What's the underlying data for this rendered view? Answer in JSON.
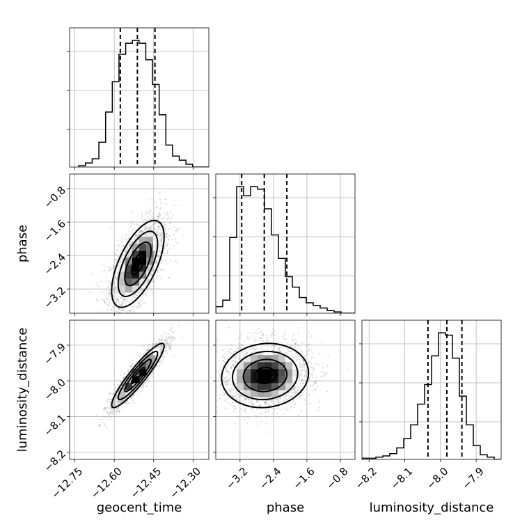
{
  "chart_data": {
    "type": "corner",
    "parameters": [
      "geocent_time",
      "phase",
      "luminosity_distance"
    ],
    "axis_labels": {
      "x": [
        "geocent_time",
        "phase",
        "luminosity_distance"
      ],
      "y": [
        "",
        "phase",
        "luminosity_distance"
      ]
    },
    "ranges": {
      "geocent_time": [
        -12.77,
        -12.24
      ],
      "phase": [
        -3.78,
        -0.45
      ],
      "luminosity_distance": [
        -8.22,
        -7.83
      ]
    },
    "ticks": {
      "geocent_time": [
        -12.75,
        -12.6,
        -12.45,
        -12.3
      ],
      "phase": [
        -3.2,
        -2.4,
        -1.6,
        -0.8
      ],
      "luminosity_distance": [
        -8.2,
        -8.1,
        -8.0,
        -7.9
      ]
    },
    "tick_labels": {
      "geocent_time": [
        "−12.75",
        "−12.60",
        "−12.45",
        "−12.30"
      ],
      "phase": [
        "−3.2",
        "−2.4",
        "−1.6",
        "−0.8"
      ],
      "luminosity_distance": [
        "−8.2",
        "−8.1",
        "−8.0",
        "−7.9"
      ]
    },
    "quantiles": {
      "geocent_time": [
        -12.577,
        -12.512,
        -12.445
      ],
      "phase": [
        -3.16,
        -2.62,
        -2.08
      ],
      "luminosity_distance": [
        -8.035,
        -7.982,
        -7.94
      ]
    },
    "histograms": {
      "geocent_time": {
        "edges": [
          -12.735,
          -12.7095,
          -12.684,
          -12.6585,
          -12.633,
          -12.6075,
          -12.582,
          -12.5565,
          -12.531,
          -12.5055,
          -12.48,
          -12.4545,
          -12.429,
          -12.4035,
          -12.378,
          -12.3525,
          -12.327,
          -12.3015,
          -12.276,
          -12.2505,
          -12.225
        ],
        "counts": [
          1,
          3,
          6,
          18,
          40,
          62,
          82,
          90,
          92,
          90,
          78,
          60,
          38,
          16,
          8,
          5,
          2,
          0,
          0,
          0
        ]
      },
      "phase": {
        "edges": [
          -3.78,
          -3.6135,
          -3.447,
          -3.2805,
          -3.114,
          -2.9475,
          -2.781,
          -2.6145,
          -2.448,
          -2.2815,
          -2.115,
          -1.9485,
          -1.782,
          -1.6155,
          -1.449,
          -1.2825,
          -1.116,
          -0.9495,
          -0.783,
          -0.6165,
          -0.45
        ],
        "counts": [
          5,
          10,
          58,
          97,
          90,
          97,
          95,
          80,
          60,
          42,
          28,
          20,
          12,
          8,
          6,
          4,
          2,
          1,
          0,
          0
        ]
      },
      "luminosity_distance": {
        "edges": [
          -8.22,
          -8.2005,
          -8.181,
          -8.1615,
          -8.142,
          -8.1225,
          -8.103,
          -8.0835,
          -8.064,
          -8.0445,
          -8.025,
          -8.0055,
          -7.986,
          -7.9665,
          -7.947,
          -7.9275,
          -7.908,
          -7.8885,
          -7.869,
          -7.8495,
          -7.83
        ],
        "counts": [
          1,
          1,
          2,
          3,
          5,
          10,
          18,
          30,
          48,
          65,
          90,
          110,
          108,
          88,
          55,
          30,
          12,
          4,
          2,
          0
        ]
      }
    },
    "correlations": {
      "phase|geocent_time": 0.62,
      "luminosity_distance|geocent_time": 0.92,
      "luminosity_distance|phase": 0.08
    },
    "marginal_stats": {
      "geocent_time": {
        "mean": -12.51,
        "std": 0.05
      },
      "phase": {
        "mean": -2.6,
        "std": 0.52
      },
      "luminosity_distance": {
        "mean": -7.985,
        "std": 0.045
      }
    },
    "contour_levels_sigma": [
      0.5,
      1.0,
      1.5,
      2.0
    ],
    "grid": true,
    "colors": {
      "scatter": "#9a9a9a",
      "line": "#000000",
      "grid": "#b0b0b0"
    }
  }
}
